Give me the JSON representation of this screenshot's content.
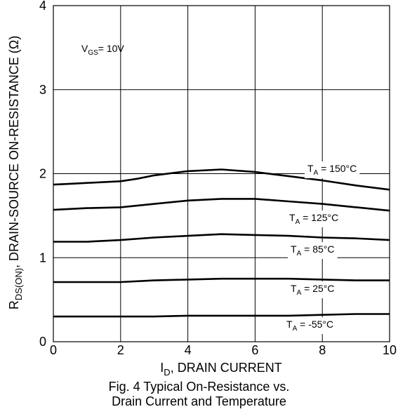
{
  "chart_data": {
    "type": "line",
    "xlabel": {
      "main": "I",
      "sub": "D",
      "rest": ", DRAIN CURRENT"
    },
    "ylabel": {
      "main": "R",
      "sub": "DS(ON)",
      "rest": ", DRAIN-SOURCE ON-RESISTANCE (Ω)"
    },
    "xlim": [
      0,
      10
    ],
    "ylim": [
      0,
      4
    ],
    "x_ticks": [
      "0",
      "2",
      "4",
      "6",
      "8",
      "10"
    ],
    "y_ticks": [
      "0",
      "1",
      "2",
      "3",
      "4"
    ],
    "grid": true,
    "annotation": {
      "main": "V",
      "sub": "GS",
      "rest": "= 10V"
    },
    "series": [
      {
        "name": "T_A = 150°C",
        "label": {
          "main": "T",
          "sub": "A",
          "rest": " = 150°C"
        },
        "x": [
          0,
          0.5,
          1,
          2,
          2.5,
          3,
          4,
          5,
          6,
          7,
          8,
          9,
          10
        ],
        "y": [
          1.87,
          1.88,
          1.89,
          1.91,
          1.94,
          1.98,
          2.03,
          2.05,
          2.02,
          1.97,
          1.92,
          1.86,
          1.81
        ]
      },
      {
        "name": "T_A = 125°C",
        "label": {
          "main": "T",
          "sub": "A",
          "rest": " = 125°C"
        },
        "x": [
          0,
          0.5,
          1,
          2,
          3,
          4,
          5,
          6,
          7,
          8,
          9,
          10
        ],
        "y": [
          1.57,
          1.58,
          1.59,
          1.6,
          1.64,
          1.68,
          1.7,
          1.7,
          1.67,
          1.64,
          1.6,
          1.56
        ]
      },
      {
        "name": "T_A = 85°C",
        "label": {
          "main": "T",
          "sub": "A",
          "rest": " = 85°C"
        },
        "x": [
          0,
          1,
          2,
          3,
          4,
          5,
          6,
          7,
          8,
          9,
          10
        ],
        "y": [
          1.19,
          1.19,
          1.21,
          1.24,
          1.26,
          1.28,
          1.27,
          1.26,
          1.24,
          1.23,
          1.21
        ]
      },
      {
        "name": "T_A = 25°C",
        "label": {
          "main": "T",
          "sub": "A",
          "rest": " = 25°C"
        },
        "x": [
          0,
          2,
          3,
          4,
          5,
          6,
          7,
          8,
          9,
          10
        ],
        "y": [
          0.71,
          0.71,
          0.73,
          0.74,
          0.75,
          0.75,
          0.75,
          0.74,
          0.73,
          0.73
        ]
      },
      {
        "name": "T_A = -55°C",
        "label": {
          "main": "T",
          "sub": "A",
          "rest": " = -55°C"
        },
        "x": [
          0,
          2,
          3,
          4,
          5,
          6,
          7,
          8,
          9,
          10
        ],
        "y": [
          0.3,
          0.3,
          0.3,
          0.31,
          0.31,
          0.31,
          0.31,
          0.32,
          0.33,
          0.33
        ]
      }
    ]
  },
  "caption": {
    "line1": "Fig. 4 Typical On-Resistance vs.",
    "line2": "Drain Current and Temperature"
  }
}
